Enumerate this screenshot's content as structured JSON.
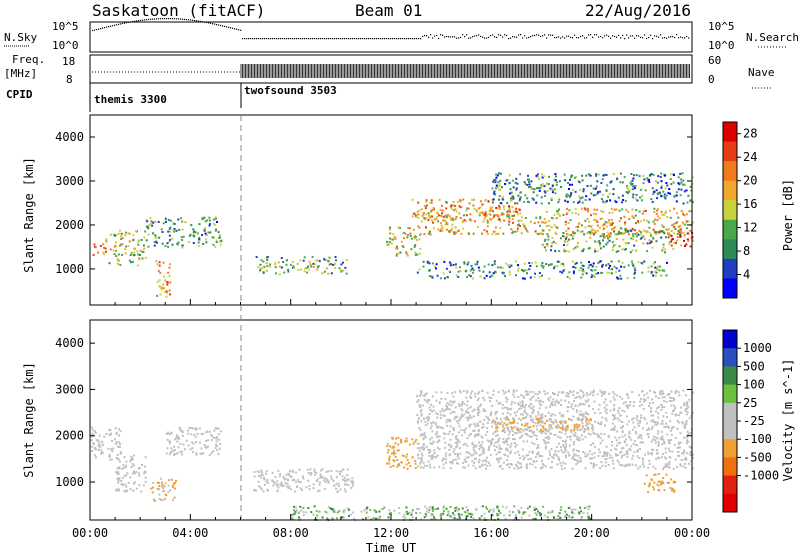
{
  "header": {
    "station": "Saskatoon (fitACF)",
    "beam": "Beam 01",
    "date": "22/Aug/2016"
  },
  "summary": {
    "nsky_label": "N.Sky",
    "nsky_ticks": [
      "10^5",
      "10^0"
    ],
    "nsearch_label": "N.Search",
    "nsearch_ticks": [
      "10^5",
      "10^0"
    ],
    "freq_label": "Freq.",
    "freq_unit": "[MHz]",
    "freq_ticks": [
      "18",
      "8"
    ],
    "nave_label": "Nave",
    "nave_ticks": [
      "60",
      "0"
    ],
    "cpid_label": "CPID",
    "cpid_entries": [
      {
        "name": "themis 3300",
        "start_hour": 0
      },
      {
        "name": "twofsound 3503",
        "start_hour": 6
      }
    ]
  },
  "colors": {
    "power_scale": [
      "#0000ff",
      "#1f3fbf",
      "#2e8b57",
      "#4aa84a",
      "#c8d23c",
      "#f0a82a",
      "#f07a1e",
      "#e83c14",
      "#dd0000"
    ],
    "velocity_scale": [
      "#0000d0",
      "#2a4fbf",
      "#3a8a4a",
      "#6cc040",
      "#c0c0c0",
      "#c0c0c0",
      "#f0a030",
      "#f07010",
      "#e02010",
      "#e00000"
    ],
    "ground_scatter": "#c0c0c0"
  },
  "chart_data": [
    {
      "type": "heatmap",
      "panel": "power",
      "xlabel": "",
      "ylabel": "Slant Range [km]",
      "x_ticks": [
        "00:00",
        "04:00",
        "08:00",
        "12:00",
        "16:00",
        "20:00",
        "00:00"
      ],
      "x_range_hours": [
        0,
        24
      ],
      "y_ticks": [
        1000,
        2000,
        3000,
        4000
      ],
      "ylim": [
        180,
        4500
      ],
      "colorbar_label": "Power [dB]",
      "colorbar_ticks": [
        4,
        8,
        12,
        16,
        20,
        24,
        28
      ],
      "colorbar_range": [
        0,
        30
      ],
      "regions": [
        {
          "t": [
            0.0,
            0.6
          ],
          "r": [
            1300,
            1650
          ],
          "level": 22
        },
        {
          "t": [
            0.6,
            2.2
          ],
          "r": [
            1100,
            1900
          ],
          "level": 14
        },
        {
          "t": [
            2.2,
            5.2
          ],
          "r": [
            1500,
            2200
          ],
          "level": 10
        },
        {
          "t": [
            2.6,
            3.2
          ],
          "r": [
            300,
            1200
          ],
          "level": 20
        },
        {
          "t": [
            6.6,
            10.3
          ],
          "r": [
            900,
            1300
          ],
          "level": 12
        },
        {
          "t": [
            11.8,
            13.2
          ],
          "r": [
            1300,
            2000
          ],
          "level": 16
        },
        {
          "t": [
            12.8,
            17.0
          ],
          "r": [
            2100,
            2600
          ],
          "level": 20
        },
        {
          "t": [
            13.0,
            24.0
          ],
          "r": [
            1800,
            2400
          ],
          "level": 18
        },
        {
          "t": [
            18.0,
            23.5
          ],
          "r": [
            1400,
            1900
          ],
          "level": 12
        },
        {
          "t": [
            13.0,
            23.0
          ],
          "r": [
            800,
            1200
          ],
          "level": 9
        },
        {
          "t": [
            16.0,
            24.0
          ],
          "r": [
            2500,
            3200
          ],
          "level": 8
        },
        {
          "t": [
            23.0,
            24.0
          ],
          "r": [
            1500,
            2000
          ],
          "level": 26
        }
      ]
    },
    {
      "type": "heatmap",
      "panel": "velocity",
      "xlabel": "Time UT",
      "ylabel": "Slant Range [km]",
      "x_ticks": [
        "00:00",
        "04:00",
        "08:00",
        "12:00",
        "16:00",
        "20:00",
        "00:00"
      ],
      "x_range_hours": [
        0,
        24
      ],
      "y_ticks": [
        1000,
        2000,
        3000,
        4000
      ],
      "ylim": [
        180,
        4500
      ],
      "colorbar_label": "Velocity [m s^-1]",
      "colorbar_ticks": [
        1000,
        500,
        100,
        25,
        -25,
        -100,
        -500,
        -1000
      ],
      "regions": [
        {
          "t": [
            0.0,
            1.2
          ],
          "r": [
            1500,
            2200
          ],
          "v": 0
        },
        {
          "t": [
            1.0,
            2.2
          ],
          "r": [
            800,
            1600
          ],
          "v": 0
        },
        {
          "t": [
            2.4,
            3.4
          ],
          "r": [
            600,
            1100
          ],
          "v": -150
        },
        {
          "t": [
            3.0,
            5.2
          ],
          "r": [
            1600,
            2200
          ],
          "v": 0
        },
        {
          "t": [
            6.4,
            10.5
          ],
          "r": [
            800,
            1300
          ],
          "v": 0
        },
        {
          "t": [
            11.8,
            13.0
          ],
          "r": [
            1300,
            2000
          ],
          "v": -200
        },
        {
          "t": [
            13.0,
            24.0
          ],
          "r": [
            1300,
            3000
          ],
          "v": 0
        },
        {
          "t": [
            16.0,
            20.0
          ],
          "r": [
            2100,
            2400
          ],
          "v": -150
        },
        {
          "t": [
            22.0,
            23.3
          ],
          "r": [
            800,
            1200
          ],
          "v": -200
        },
        {
          "t": [
            8.0,
            20.0
          ],
          "r": [
            200,
            500
          ],
          "v": 60
        }
      ]
    }
  ]
}
